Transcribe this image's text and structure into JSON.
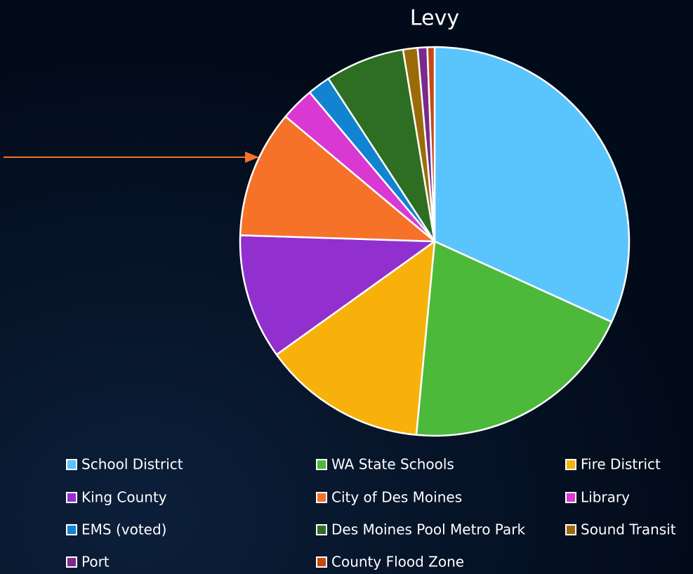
{
  "chart_data": {
    "type": "pie",
    "title": "Levy",
    "categories": [
      "School District",
      "WA State Schools",
      "Fire District",
      "King County",
      "City of Des Moines",
      "Library",
      "EMS (voted)",
      "Des Moines Pool Metro Park",
      "Sound Transit",
      "Port",
      "County Flood Zone"
    ],
    "values": [
      31.8,
      19.7,
      13.6,
      10.4,
      10.6,
      2.8,
      1.9,
      6.6,
      1.2,
      0.8,
      0.6
    ],
    "colors": [
      "#5ac4fd",
      "#4db93a",
      "#f7b10a",
      "#9130cf",
      "#f57228",
      "#d938d3",
      "#1183d1",
      "#2e6e23",
      "#9c6b09",
      "#7a2a8c",
      "#c44a12"
    ],
    "legend": "bottom"
  }
}
